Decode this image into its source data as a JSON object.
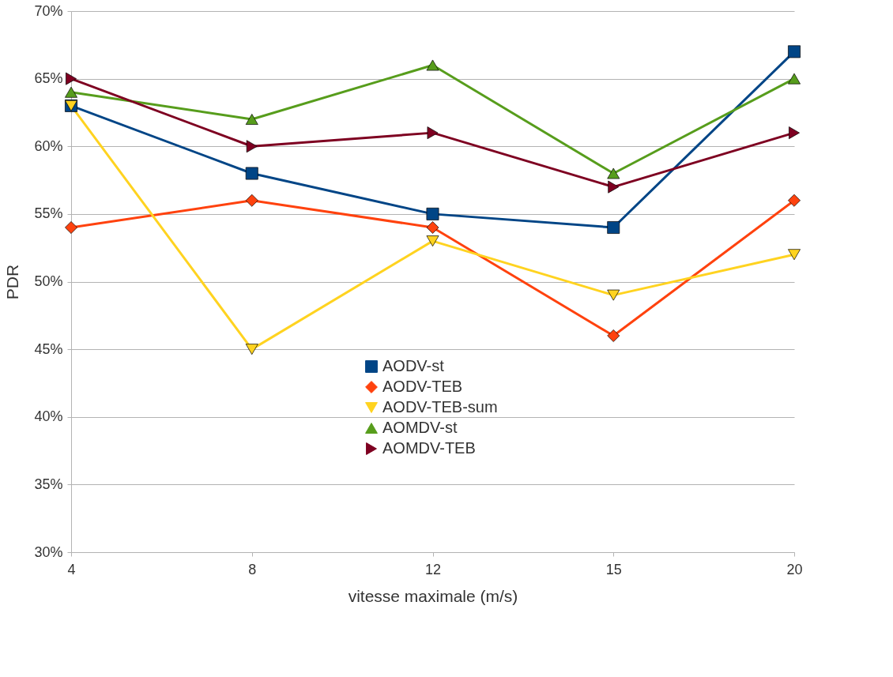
{
  "chart_data": {
    "type": "line",
    "xlabel": "vitesse maximale (m/s)",
    "ylabel": "PDR",
    "categories": [
      "4",
      "8",
      "12",
      "15",
      "20"
    ],
    "ylim": [
      30,
      70
    ],
    "yticks": [
      {
        "value": 30,
        "label": "30%"
      },
      {
        "value": 35,
        "label": "35%"
      },
      {
        "value": 40,
        "label": "40%"
      },
      {
        "value": 45,
        "label": "45%"
      },
      {
        "value": 50,
        "label": "50%"
      },
      {
        "value": 55,
        "label": "55%"
      },
      {
        "value": 60,
        "label": "60%"
      },
      {
        "value": 65,
        "label": "65%"
      },
      {
        "value": 70,
        "label": "70%"
      }
    ],
    "grid": "y",
    "legend": "bottom",
    "series": [
      {
        "name": "AODV-st",
        "color": "#004586",
        "marker": "square",
        "values": [
          63,
          58,
          55,
          54,
          67
        ]
      },
      {
        "name": "AODV-TEB",
        "color": "#ff420e",
        "marker": "diamond",
        "values": [
          54,
          56,
          54,
          46,
          56
        ]
      },
      {
        "name": "AODV-TEB-sum",
        "color": "#ffd320",
        "marker": "triangle-down",
        "values": [
          63,
          45,
          53,
          49,
          52
        ]
      },
      {
        "name": "AOMDV-st",
        "color": "#579d1c",
        "marker": "triangle",
        "values": [
          64,
          62,
          66,
          58,
          65
        ]
      },
      {
        "name": "AOMDV-TEB",
        "color": "#7e0021",
        "marker": "triangle-right",
        "values": [
          65,
          60,
          61,
          57,
          61
        ]
      }
    ]
  }
}
